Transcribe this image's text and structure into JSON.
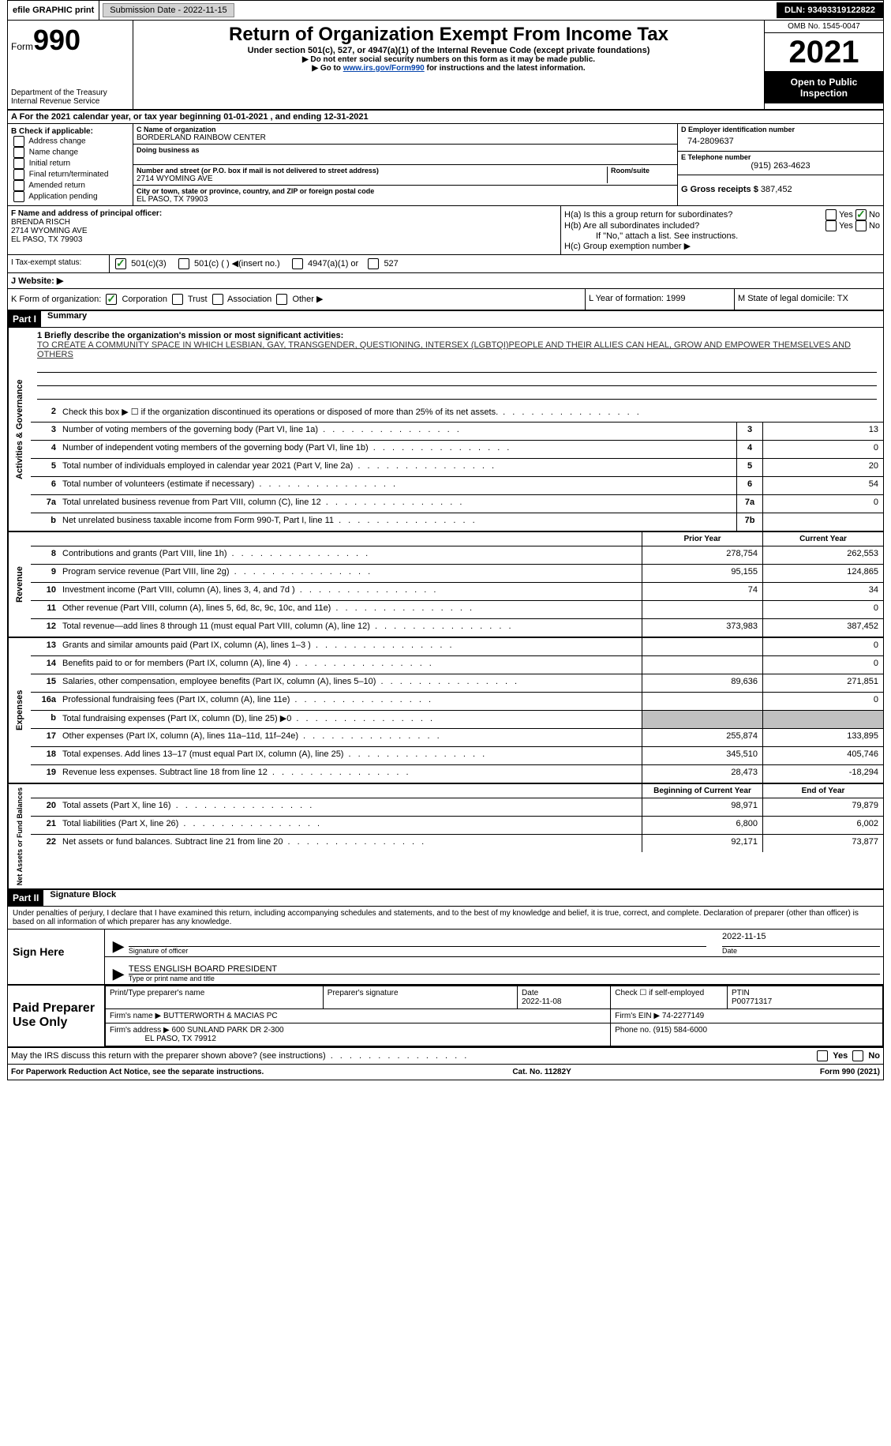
{
  "topbar": {
    "efile": "efile GRAPHIC print",
    "submission_label": "Submission Date - 2022-11-15",
    "dln": "DLN: 93493319122822"
  },
  "header": {
    "form_prefix": "Form",
    "form_number": "990",
    "dept": "Department of the Treasury Internal Revenue Service",
    "title": "Return of Organization Exempt From Income Tax",
    "subtitle": "Under section 501(c), 527, or 4947(a)(1) of the Internal Revenue Code (except private foundations)",
    "inst1": "▶ Do not enter social security numbers on this form as it may be made public.",
    "inst2_pre": "▶ Go to ",
    "inst2_link": "www.irs.gov/Form990",
    "inst2_post": " for instructions and the latest information.",
    "omb": "OMB No. 1545-0047",
    "year": "2021",
    "open": "Open to Public Inspection"
  },
  "row_a": "A For the 2021 calendar year, or tax year beginning 01-01-2021   , and ending 12-31-2021",
  "col_b": {
    "label": "B Check if applicable:",
    "opts": [
      "Address change",
      "Name change",
      "Initial return",
      "Final return/terminated",
      "Amended return",
      "Application pending"
    ]
  },
  "col_c": {
    "name_label": "C Name of organization",
    "name": "BORDERLAND RAINBOW CENTER",
    "dba_label": "Doing business as",
    "addr_label": "Number and street (or P.O. box if mail is not delivered to street address)",
    "room_label": "Room/suite",
    "addr": "2714 WYOMING AVE",
    "city_label": "City or town, state or province, country, and ZIP or foreign postal code",
    "city": "EL PASO, TX  79903"
  },
  "col_d": {
    "ein_label": "D Employer identification number",
    "ein": "74-2809637",
    "phone_label": "E Telephone number",
    "phone": "(915) 263-4623",
    "gross_label": "G Gross receipts $ ",
    "gross": "387,452"
  },
  "col_f": {
    "label": "F Name and address of principal officer:",
    "name": "BRENDA RISCH",
    "addr1": "2714 WYOMING AVE",
    "addr2": "EL PASO, TX  79903"
  },
  "col_h": {
    "ha": "H(a) Is this a group return for subordinates?",
    "hb": "H(b) Are all subordinates included?",
    "hb_note": "If \"No,\" attach a list. See instructions.",
    "hc": "H(c) Group exemption number ▶",
    "yes": "Yes",
    "no": "No"
  },
  "status": {
    "i_label": "I Tax-exempt status:",
    "s501c3": "501(c)(3)",
    "s501c": "501(c) (  ) ◀(insert no.)",
    "s4947": "4947(a)(1) or",
    "s527": "527",
    "j_label": "J Website: ▶"
  },
  "klm": {
    "k": "K Form of organization:",
    "corp": "Corporation",
    "trust": "Trust",
    "assoc": "Association",
    "other": "Other ▶",
    "l": "L Year of formation: 1999",
    "m": "M State of legal domicile: TX"
  },
  "part1": {
    "header": "Part I",
    "title": "Summary"
  },
  "mission": {
    "label": "1 Briefly describe the organization's mission or most significant activities:",
    "text": "TO CREATE A COMMUNITY SPACE IN WHICH LESBIAN, GAY, TRANSGENDER, QUESTIONING, INTERSEX (LGBTQI)PEOPLE AND THEIR ALLIES CAN HEAL, GROW AND EMPOWER THEMSELVES AND OTHERS"
  },
  "governance": {
    "side": "Activities & Governance",
    "rows": [
      {
        "n": "2",
        "d": "Check this box ▶ ☐ if the organization discontinued its operations or disposed of more than 25% of its net assets.",
        "box": "",
        "v": ""
      },
      {
        "n": "3",
        "d": "Number of voting members of the governing body (Part VI, line 1a)",
        "box": "3",
        "v": "13"
      },
      {
        "n": "4",
        "d": "Number of independent voting members of the governing body (Part VI, line 1b)",
        "box": "4",
        "v": "0"
      },
      {
        "n": "5",
        "d": "Total number of individuals employed in calendar year 2021 (Part V, line 2a)",
        "box": "5",
        "v": "20"
      },
      {
        "n": "6",
        "d": "Total number of volunteers (estimate if necessary)",
        "box": "6",
        "v": "54"
      },
      {
        "n": "7a",
        "d": "Total unrelated business revenue from Part VIII, column (C), line 12",
        "box": "7a",
        "v": "0"
      },
      {
        "n": "b",
        "d": "Net unrelated business taxable income from Form 990-T, Part I, line 11",
        "box": "7b",
        "v": ""
      }
    ]
  },
  "two_col_header": {
    "prior": "Prior Year",
    "current": "Current Year"
  },
  "revenue": {
    "side": "Revenue",
    "rows": [
      {
        "n": "8",
        "d": "Contributions and grants (Part VIII, line 1h)",
        "p": "278,754",
        "c": "262,553"
      },
      {
        "n": "9",
        "d": "Program service revenue (Part VIII, line 2g)",
        "p": "95,155",
        "c": "124,865"
      },
      {
        "n": "10",
        "d": "Investment income (Part VIII, column (A), lines 3, 4, and 7d )",
        "p": "74",
        "c": "34"
      },
      {
        "n": "11",
        "d": "Other revenue (Part VIII, column (A), lines 5, 6d, 8c, 9c, 10c, and 11e)",
        "p": "",
        "c": "0"
      },
      {
        "n": "12",
        "d": "Total revenue—add lines 8 through 11 (must equal Part VIII, column (A), line 12)",
        "p": "373,983",
        "c": "387,452"
      }
    ]
  },
  "expenses": {
    "side": "Expenses",
    "rows": [
      {
        "n": "13",
        "d": "Grants and similar amounts paid (Part IX, column (A), lines 1–3 )",
        "p": "",
        "c": "0"
      },
      {
        "n": "14",
        "d": "Benefits paid to or for members (Part IX, column (A), line 4)",
        "p": "",
        "c": "0"
      },
      {
        "n": "15",
        "d": "Salaries, other compensation, employee benefits (Part IX, column (A), lines 5–10)",
        "p": "89,636",
        "c": "271,851"
      },
      {
        "n": "16a",
        "d": "Professional fundraising fees (Part IX, column (A), line 11e)",
        "p": "",
        "c": "0"
      },
      {
        "n": "b",
        "d": "Total fundraising expenses (Part IX, column (D), line 25) ▶0",
        "p": "grey",
        "c": "grey"
      },
      {
        "n": "17",
        "d": "Other expenses (Part IX, column (A), lines 11a–11d, 11f–24e)",
        "p": "255,874",
        "c": "133,895"
      },
      {
        "n": "18",
        "d": "Total expenses. Add lines 13–17 (must equal Part IX, column (A), line 25)",
        "p": "345,510",
        "c": "405,746"
      },
      {
        "n": "19",
        "d": "Revenue less expenses. Subtract line 18 from line 12",
        "p": "28,473",
        "c": "-18,294"
      }
    ]
  },
  "net_header": {
    "begin": "Beginning of Current Year",
    "end": "End of Year"
  },
  "netassets": {
    "side": "Net Assets or Fund Balances",
    "rows": [
      {
        "n": "20",
        "d": "Total assets (Part X, line 16)",
        "p": "98,971",
        "c": "79,879"
      },
      {
        "n": "21",
        "d": "Total liabilities (Part X, line 26)",
        "p": "6,800",
        "c": "6,002"
      },
      {
        "n": "22",
        "d": "Net assets or fund balances. Subtract line 21 from line 20",
        "p": "92,171",
        "c": "73,877"
      }
    ]
  },
  "part2": {
    "header": "Part II",
    "title": "Signature Block",
    "declaration": "Under penalties of perjury, I declare that I have examined this return, including accompanying schedules and statements, and to the best of my knowledge and belief, it is true, correct, and complete. Declaration of preparer (other than officer) is based on all information of which preparer has any knowledge."
  },
  "sign": {
    "label": "Sign Here",
    "sig_officer": "Signature of officer",
    "date_label": "Date",
    "date": "2022-11-15",
    "name": "TESS ENGLISH  BOARD PRESIDENT",
    "name_label": "Type or print name and title"
  },
  "preparer": {
    "label": "Paid Preparer Use Only",
    "print_label": "Print/Type preparer's name",
    "sig_label": "Preparer's signature",
    "date_label": "Date",
    "date": "2022-11-08",
    "check_label": "Check ☐ if self-employed",
    "ptin_label": "PTIN",
    "ptin": "P00771317",
    "firm_name_label": "Firm's name ▶",
    "firm_name": "BUTTERWORTH & MACIAS PC",
    "firm_ein_label": "Firm's EIN ▶",
    "firm_ein": "74-2277149",
    "firm_addr_label": "Firm's address ▶",
    "firm_addr": "600 SUNLAND PARK DR 2-300",
    "firm_city": "EL PASO, TX  79912",
    "phone_label": "Phone no.",
    "phone": "(915) 584-6000"
  },
  "discuss": "May the IRS discuss this return with the preparer shown above? (see instructions)",
  "footer": {
    "left": "For Paperwork Reduction Act Notice, see the separate instructions.",
    "center": "Cat. No. 11282Y",
    "right": "Form 990 (2021)"
  }
}
